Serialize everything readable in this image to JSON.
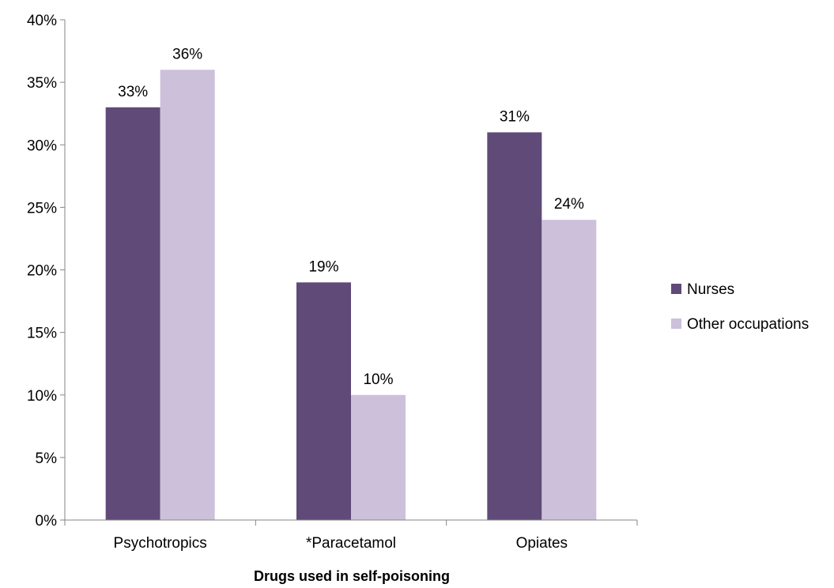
{
  "chart_data": {
    "type": "bar",
    "title": "",
    "xlabel": "Drugs used in self-poisoning",
    "ylabel": "",
    "categories": [
      "Psychotropics",
      "*Paracetamol",
      "Opiates"
    ],
    "series": [
      {
        "name": "Nurses",
        "values": [
          33,
          19,
          31
        ],
        "color": "#5f4a78"
      },
      {
        "name": "Other occupations",
        "values": [
          36,
          10,
          24
        ],
        "color": "#ccc0da"
      }
    ],
    "ylim": [
      0,
      40
    ],
    "yticks": [
      0,
      5,
      10,
      15,
      20,
      25,
      30,
      35,
      40
    ],
    "value_suffix": "%",
    "grid": false,
    "legend_position": "right"
  }
}
